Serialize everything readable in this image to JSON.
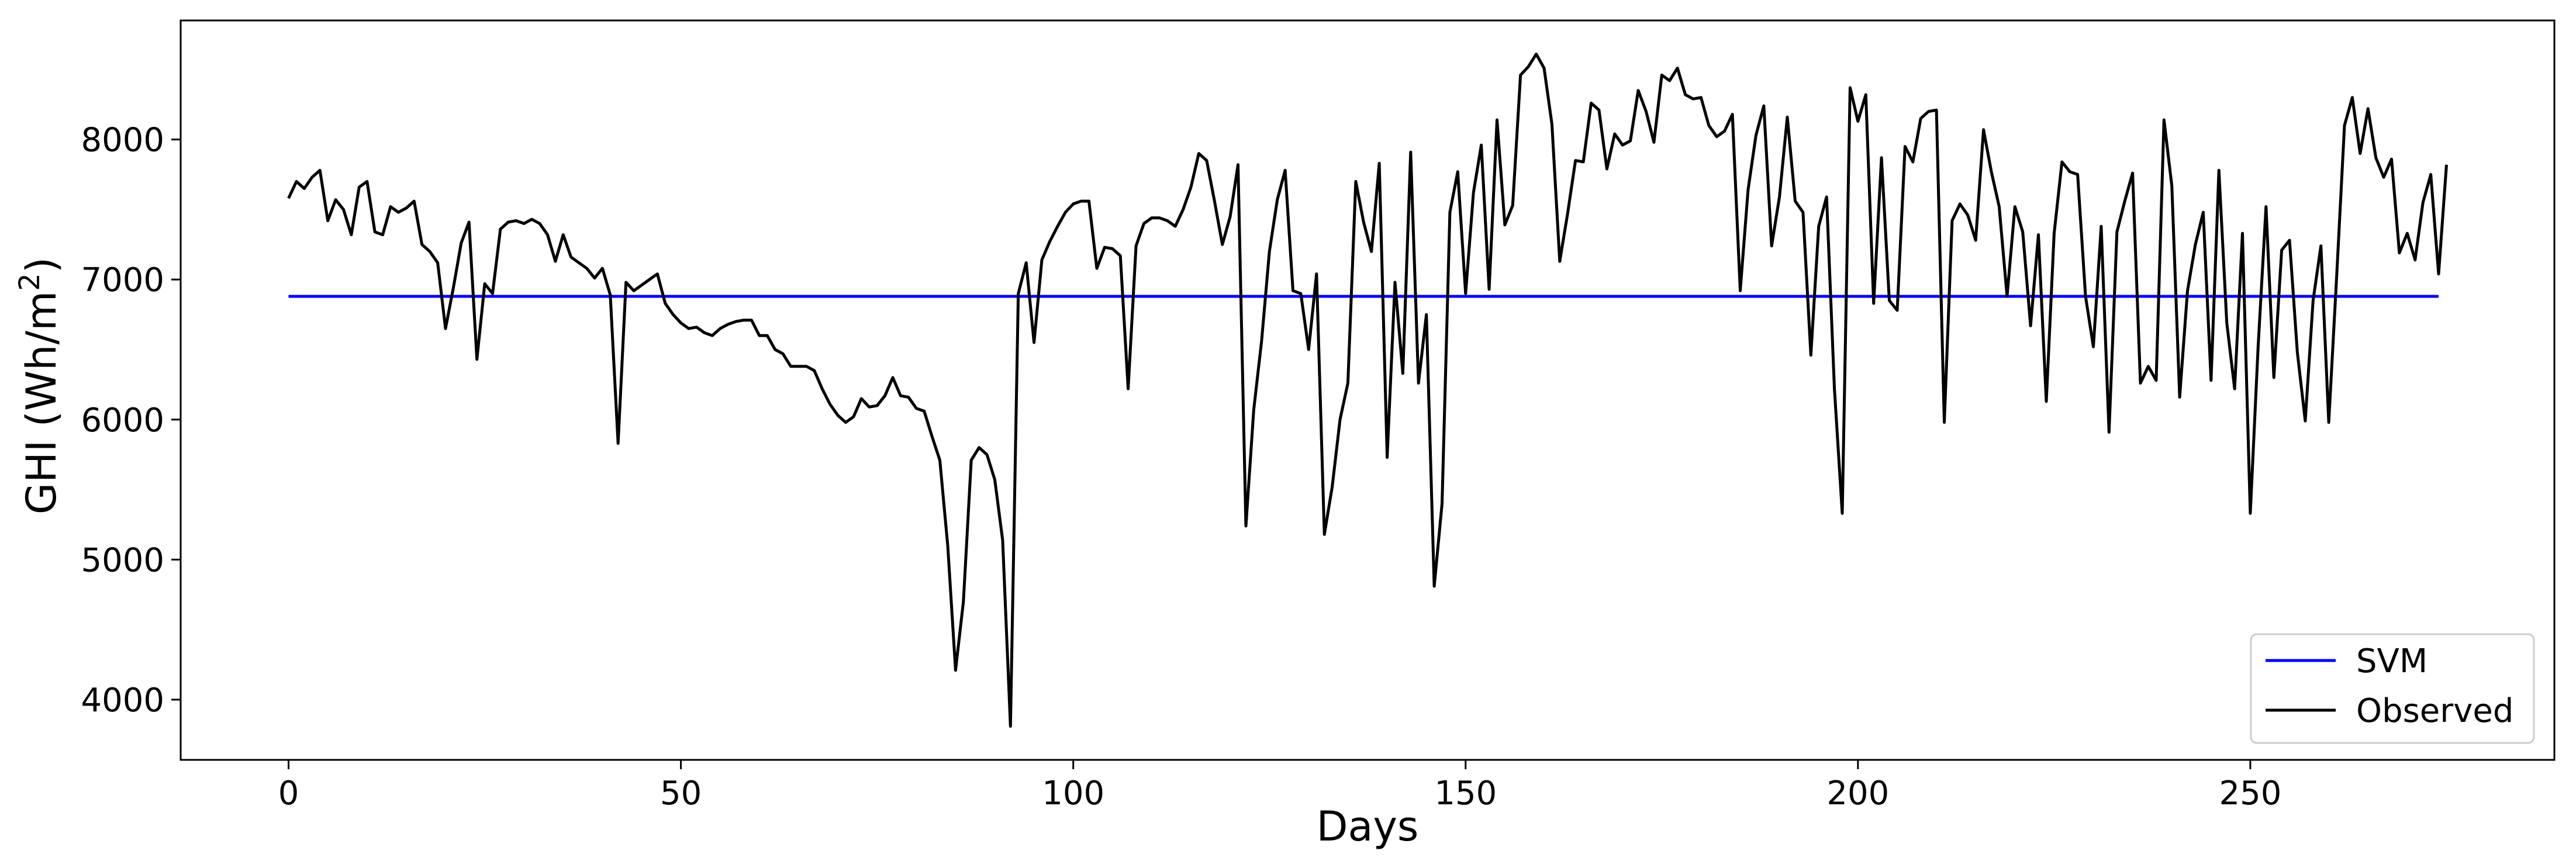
{
  "chart_data": {
    "type": "line",
    "title": "",
    "xlabel": "Days",
    "ylabel": "GHI (Wh/m²)",
    "ylabel_main": "GHI (Wh/m",
    "ylabel_sup": "2",
    "ylabel_close": ")",
    "xlim": [
      -13.75,
      288.75
    ],
    "ylim": [
      3570,
      8850
    ],
    "xticks": [
      0,
      50,
      100,
      150,
      200,
      250
    ],
    "yticks": [
      4000,
      5000,
      6000,
      7000,
      8000
    ],
    "grid": false,
    "legend_position": "lower-right",
    "series": [
      {
        "name": "SVM",
        "color": "#0000ff",
        "x": [
          0,
          274
        ],
        "y": [
          6880,
          6880
        ]
      },
      {
        "name": "Observed",
        "color": "#000000",
        "y": [
          7580,
          7700,
          7650,
          7730,
          7780,
          7420,
          7570,
          7500,
          7320,
          7660,
          7700,
          7340,
          7320,
          7520,
          7480,
          7510,
          7560,
          7250,
          7200,
          7120,
          6650,
          6940,
          7260,
          7410,
          6430,
          6970,
          6900,
          7360,
          7410,
          7420,
          7400,
          7430,
          7400,
          7320,
          7130,
          7320,
          7160,
          7120,
          7080,
          7010,
          7080,
          6890,
          5830,
          6980,
          6920,
          6960,
          7000,
          7040,
          6830,
          6750,
          6690,
          6650,
          6660,
          6620,
          6600,
          6650,
          6680,
          6700,
          6710,
          6710,
          6600,
          6600,
          6500,
          6470,
          6380,
          6380,
          6380,
          6350,
          6220,
          6110,
          6030,
          5980,
          6020,
          6150,
          6090,
          6100,
          6170,
          6300,
          6170,
          6160,
          6080,
          6060,
          5880,
          5710,
          5100,
          4210,
          4700,
          5710,
          5800,
          5750,
          5570,
          5140,
          3810,
          6900,
          7120,
          6550,
          7140,
          7270,
          7380,
          7480,
          7540,
          7560,
          7560,
          7080,
          7230,
          7220,
          7170,
          6220,
          7240,
          7400,
          7440,
          7440,
          7420,
          7380,
          7500,
          7660,
          7900,
          7850,
          7560,
          7250,
          7450,
          7820,
          5240,
          6070,
          6560,
          7200,
          7570,
          7780,
          6920,
          6900,
          6500,
          7040,
          5180,
          5520,
          6000,
          6260,
          7700,
          7410,
          7200,
          7830,
          5730,
          6980,
          6330,
          7910,
          6260,
          6750,
          4810,
          5400,
          7480,
          7770,
          6900,
          7620,
          7960,
          6930,
          8140,
          7390,
          7530,
          8460,
          8520,
          8610,
          8510,
          8110,
          7130,
          7470,
          7850,
          7840,
          8260,
          8210,
          7790,
          8040,
          7960,
          7990,
          8350,
          8200,
          7980,
          8460,
          8420,
          8510,
          8320,
          8290,
          8300,
          8100,
          8020,
          8060,
          8180,
          6920,
          7640,
          8030,
          8240,
          7240,
          7590,
          8160,
          7560,
          7480,
          6460,
          7380,
          7590,
          6220,
          5330,
          8370,
          8130,
          8320,
          6830,
          7870,
          6850,
          6780,
          7950,
          7840,
          8150,
          8200,
          8210,
          5980,
          7420,
          7540,
          7460,
          7280,
          8070,
          7770,
          7520,
          6880,
          7520,
          7340,
          6670,
          7320,
          6130,
          7330,
          7840,
          7770,
          7750,
          6880,
          6520,
          7380,
          5910,
          7340,
          7560,
          7760,
          6260,
          6380,
          6280,
          8140,
          7670,
          6160,
          6920,
          7250,
          7480,
          6280,
          7780,
          6690,
          6220,
          7330,
          5330,
          6520,
          7520,
          6300,
          7210,
          7280,
          6480,
          5990,
          6850,
          7240,
          5980,
          7020,
          8100,
          8300,
          7900,
          8220,
          7870,
          7730,
          7860,
          7190,
          7330,
          7140,
          7550,
          7750,
          7040,
          7820
        ]
      }
    ]
  }
}
